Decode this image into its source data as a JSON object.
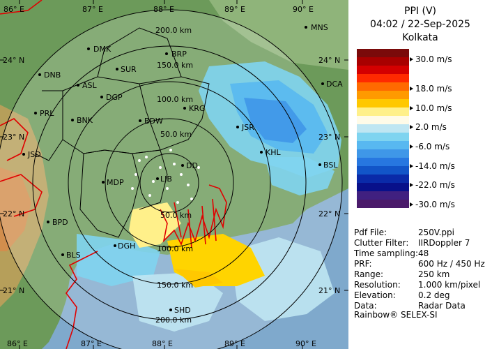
{
  "header": {
    "product": "PPI (V)",
    "datetime": "04:02 / 22-Sep-2025",
    "station": "Kolkata"
  },
  "scale": {
    "unit": "m/s",
    "colors": [
      "#7a0a0a",
      "#a80000",
      "#d40000",
      "#ff2a00",
      "#ff6a00",
      "#ff9a00",
      "#ffc800",
      "#fff08a",
      "#fffbe8",
      "#bfe6f2",
      "#7fd4f0",
      "#58b8f0",
      "#3f97e8",
      "#2777e0",
      "#1255c8",
      "#0a2aa8",
      "#08108a",
      "#402080",
      "#4a1a6a"
    ],
    "labels": [
      "30.0 m/s",
      "18.0 m/s",
      "10.0 m/s",
      "2.0 m/s",
      "-6.0 m/s",
      "-14.0 m/s",
      "-22.0 m/s",
      "-30.0 m/s"
    ]
  },
  "meta": [
    {
      "key": "Pdf File:",
      "value": "250V.ppi"
    },
    {
      "key": "Clutter Filter:",
      "value": "IIRDoppler 7"
    },
    {
      "key": "Time sampling:",
      "value": "48"
    },
    {
      "key": "PRF:",
      "value": "600 Hz / 450 Hz"
    },
    {
      "key": "Range:",
      "value": "250 km"
    },
    {
      "key": "Resolution:",
      "value": "1.000 km/pixel"
    },
    {
      "key": "Elevation:",
      "value": "0.2 deg"
    },
    {
      "key": "Data:",
      "value": "Radar Data"
    }
  ],
  "footer": "Rainbow® SELEX-SI",
  "map": {
    "lon_labels": [
      "86° E",
      "87° E",
      "88° E",
      "89° E",
      "90° E"
    ],
    "lat_labels": [
      "24° N",
      "23° N",
      "22° N",
      "21° N"
    ],
    "range_labels": [
      "200.0 km",
      "150.0 km",
      "100.0 km",
      "50.0 km",
      "50.0 km",
      "100.0 km",
      "150.0 km",
      "200.0 km"
    ],
    "stations": [
      "MNS",
      "DMK",
      "BRP",
      "DNB",
      "SUR",
      "DCA",
      "ASL",
      "DGP",
      "KRG",
      "PRL",
      "BNK",
      "BDW",
      "JSR",
      "JSD",
      "KHL",
      "BSL",
      "DD",
      "MDP",
      "LIB",
      "BPD",
      "DGH",
      "BLS",
      "SHD"
    ]
  }
}
